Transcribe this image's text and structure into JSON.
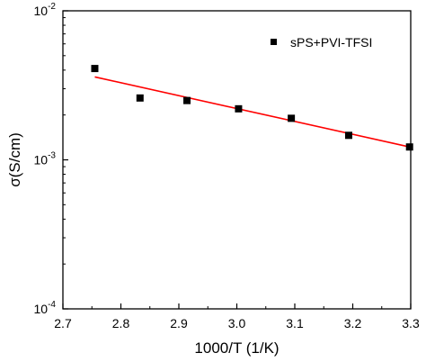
{
  "chart_data": {
    "type": "scatter",
    "xlabel": "1000/T (1/K)",
    "ylabel": "σ(S/cm)",
    "xlim": [
      2.7,
      3.3
    ],
    "ylim": [
      0.0001,
      0.01
    ],
    "yscale": "log",
    "x_ticks": [
      2.7,
      2.8,
      2.9,
      3.0,
      3.1,
      3.2,
      3.3
    ],
    "x_tick_labels": [
      "2.7",
      "2.8",
      "2.9",
      "3.0",
      "3.1",
      "3.2",
      "3.3"
    ],
    "y_ticks": [
      {
        "value": 0.01,
        "base": "10",
        "exp": "-2"
      },
      {
        "value": 0.001,
        "base": "10",
        "exp": "-3"
      },
      {
        "value": 0.0001,
        "base": "10",
        "exp": "-4"
      }
    ],
    "legend_position": "top-right",
    "series": [
      {
        "name": "sPS+PVI-TFSI",
        "marker": "square",
        "color": "#000000",
        "points": [
          {
            "x": 2.755,
            "y": 0.0041
          },
          {
            "x": 2.833,
            "y": 0.0026
          },
          {
            "x": 2.914,
            "y": 0.0025
          },
          {
            "x": 3.003,
            "y": 0.0022
          },
          {
            "x": 3.094,
            "y": 0.0019
          },
          {
            "x": 3.193,
            "y": 0.00146
          },
          {
            "x": 3.298,
            "y": 0.00122
          }
        ]
      }
    ],
    "fit_line": {
      "color": "#ff0000",
      "points": [
        {
          "x": 2.755,
          "y": 0.0036
        },
        {
          "x": 3.298,
          "y": 0.00122
        }
      ]
    },
    "grid": false
  }
}
